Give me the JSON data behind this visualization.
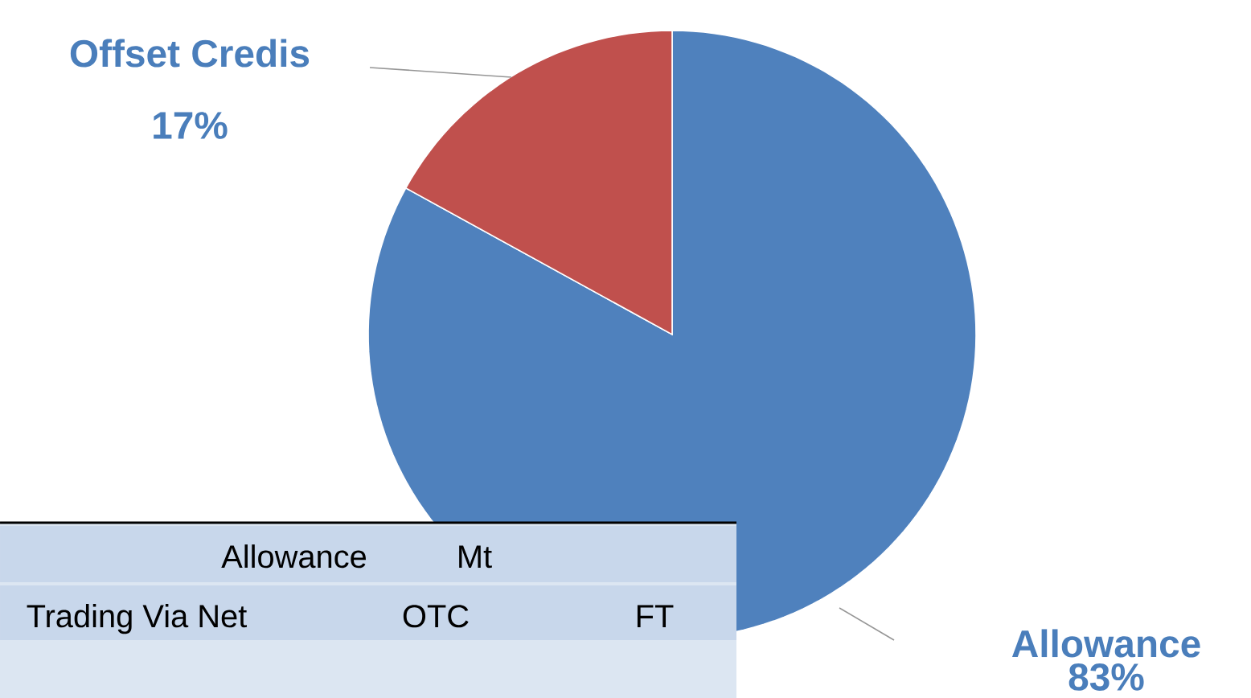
{
  "chart_data": {
    "type": "pie",
    "categories": [
      "Allowance",
      "Offset Credis"
    ],
    "values": [
      83,
      17
    ],
    "colors": [
      "#4f81bd",
      "#c0504d"
    ],
    "value_labels": [
      "83%",
      "17%"
    ],
    "annotations": [
      "Allowance",
      "Mt",
      "Trading Via Net",
      "OTC",
      "FT"
    ]
  }
}
